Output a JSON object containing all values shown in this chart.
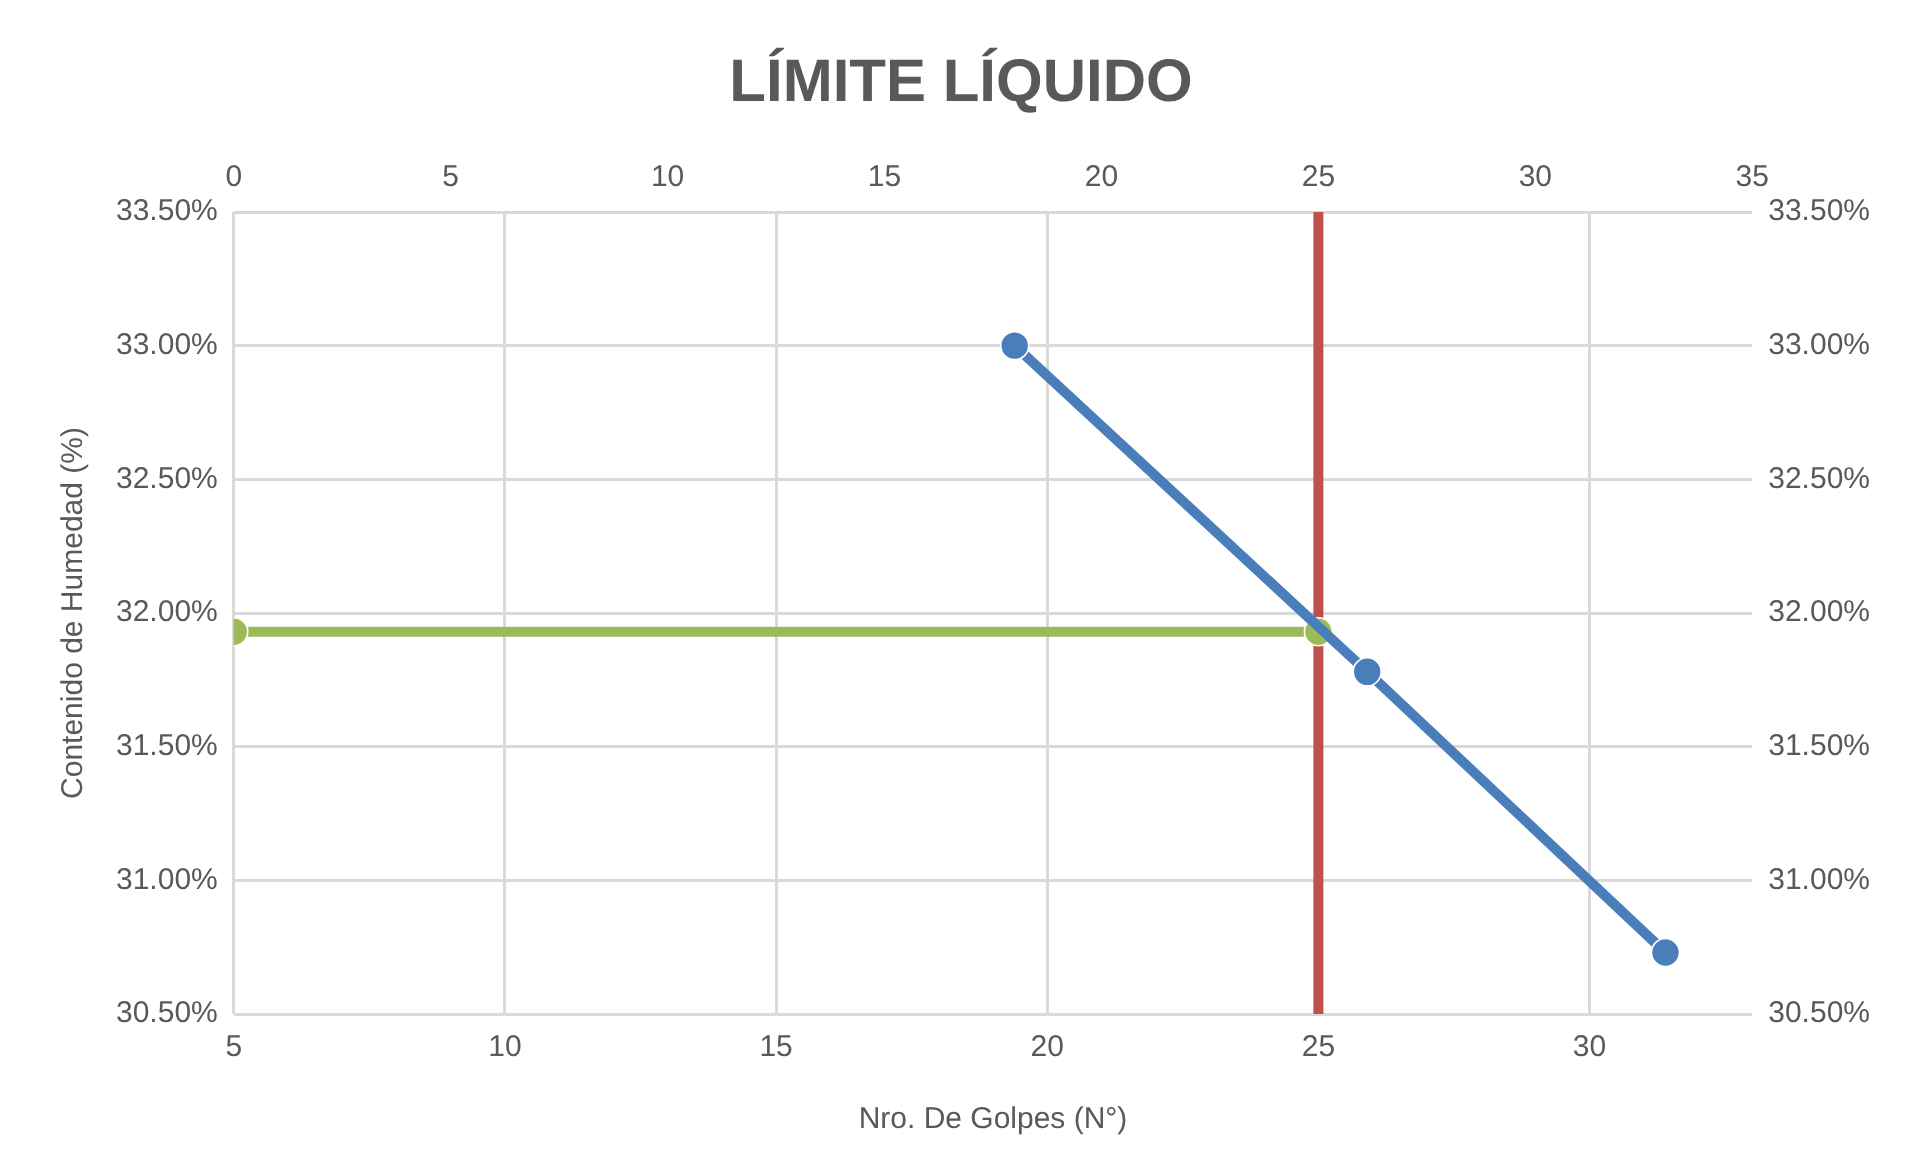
{
  "chart_data": {
    "type": "line",
    "title": "LÍMITE LÍQUIDO",
    "xlabel": "Nro. De Golpes (N°)",
    "ylabel": "Contenido de Humedad (%)",
    "series": [
      {
        "color": "#4a7ebb",
        "x": [
          19.4,
          25.9,
          31.4
        ],
        "values": [
          33.0,
          31.78,
          30.73
        ]
      },
      {
        "color": "#9bbb59",
        "x": [
          5,
          25
        ],
        "values": [
          31.93,
          31.93
        ]
      }
    ],
    "xlim": [
      5,
      33
    ],
    "xticks": [
      5,
      10,
      15,
      20,
      25,
      30
    ],
    "x2lim": [
      0,
      35
    ],
    "x2ticks": [
      0,
      5,
      10,
      15,
      20,
      25,
      30,
      35
    ],
    "ylim": [
      30.5,
      33.5
    ],
    "yticks": [
      {
        "value": 30.5,
        "label": "30.50%"
      },
      {
        "value": 31,
        "label": "31.00%"
      },
      {
        "value": 31.5,
        "label": "31.50%"
      },
      {
        "value": 32,
        "label": "32.00%"
      },
      {
        "value": 32.5,
        "label": "32.50%"
      },
      {
        "value": 33,
        "label": "33.00%"
      },
      {
        "value": 33.5,
        "label": "33.50%"
      }
    ],
    "y2lim": [
      30.5,
      33.5
    ],
    "y2ticks": [
      {
        "value": 30.5,
        "label": "30.50%"
      },
      {
        "value": 31,
        "label": "31.00%"
      },
      {
        "value": 31.5,
        "label": "31.50%"
      },
      {
        "value": 32,
        "label": "32.00%"
      },
      {
        "value": 32.5,
        "label": "32.50%"
      },
      {
        "value": 33,
        "label": "33.00%"
      },
      {
        "value": 33.5,
        "label": "33.50%"
      }
    ],
    "ref_lines": [
      {
        "axis": "x",
        "value": 25,
        "color": "#c0504d"
      }
    ],
    "grid": true,
    "legend": false,
    "marker": "circle",
    "line_style": "solid"
  }
}
